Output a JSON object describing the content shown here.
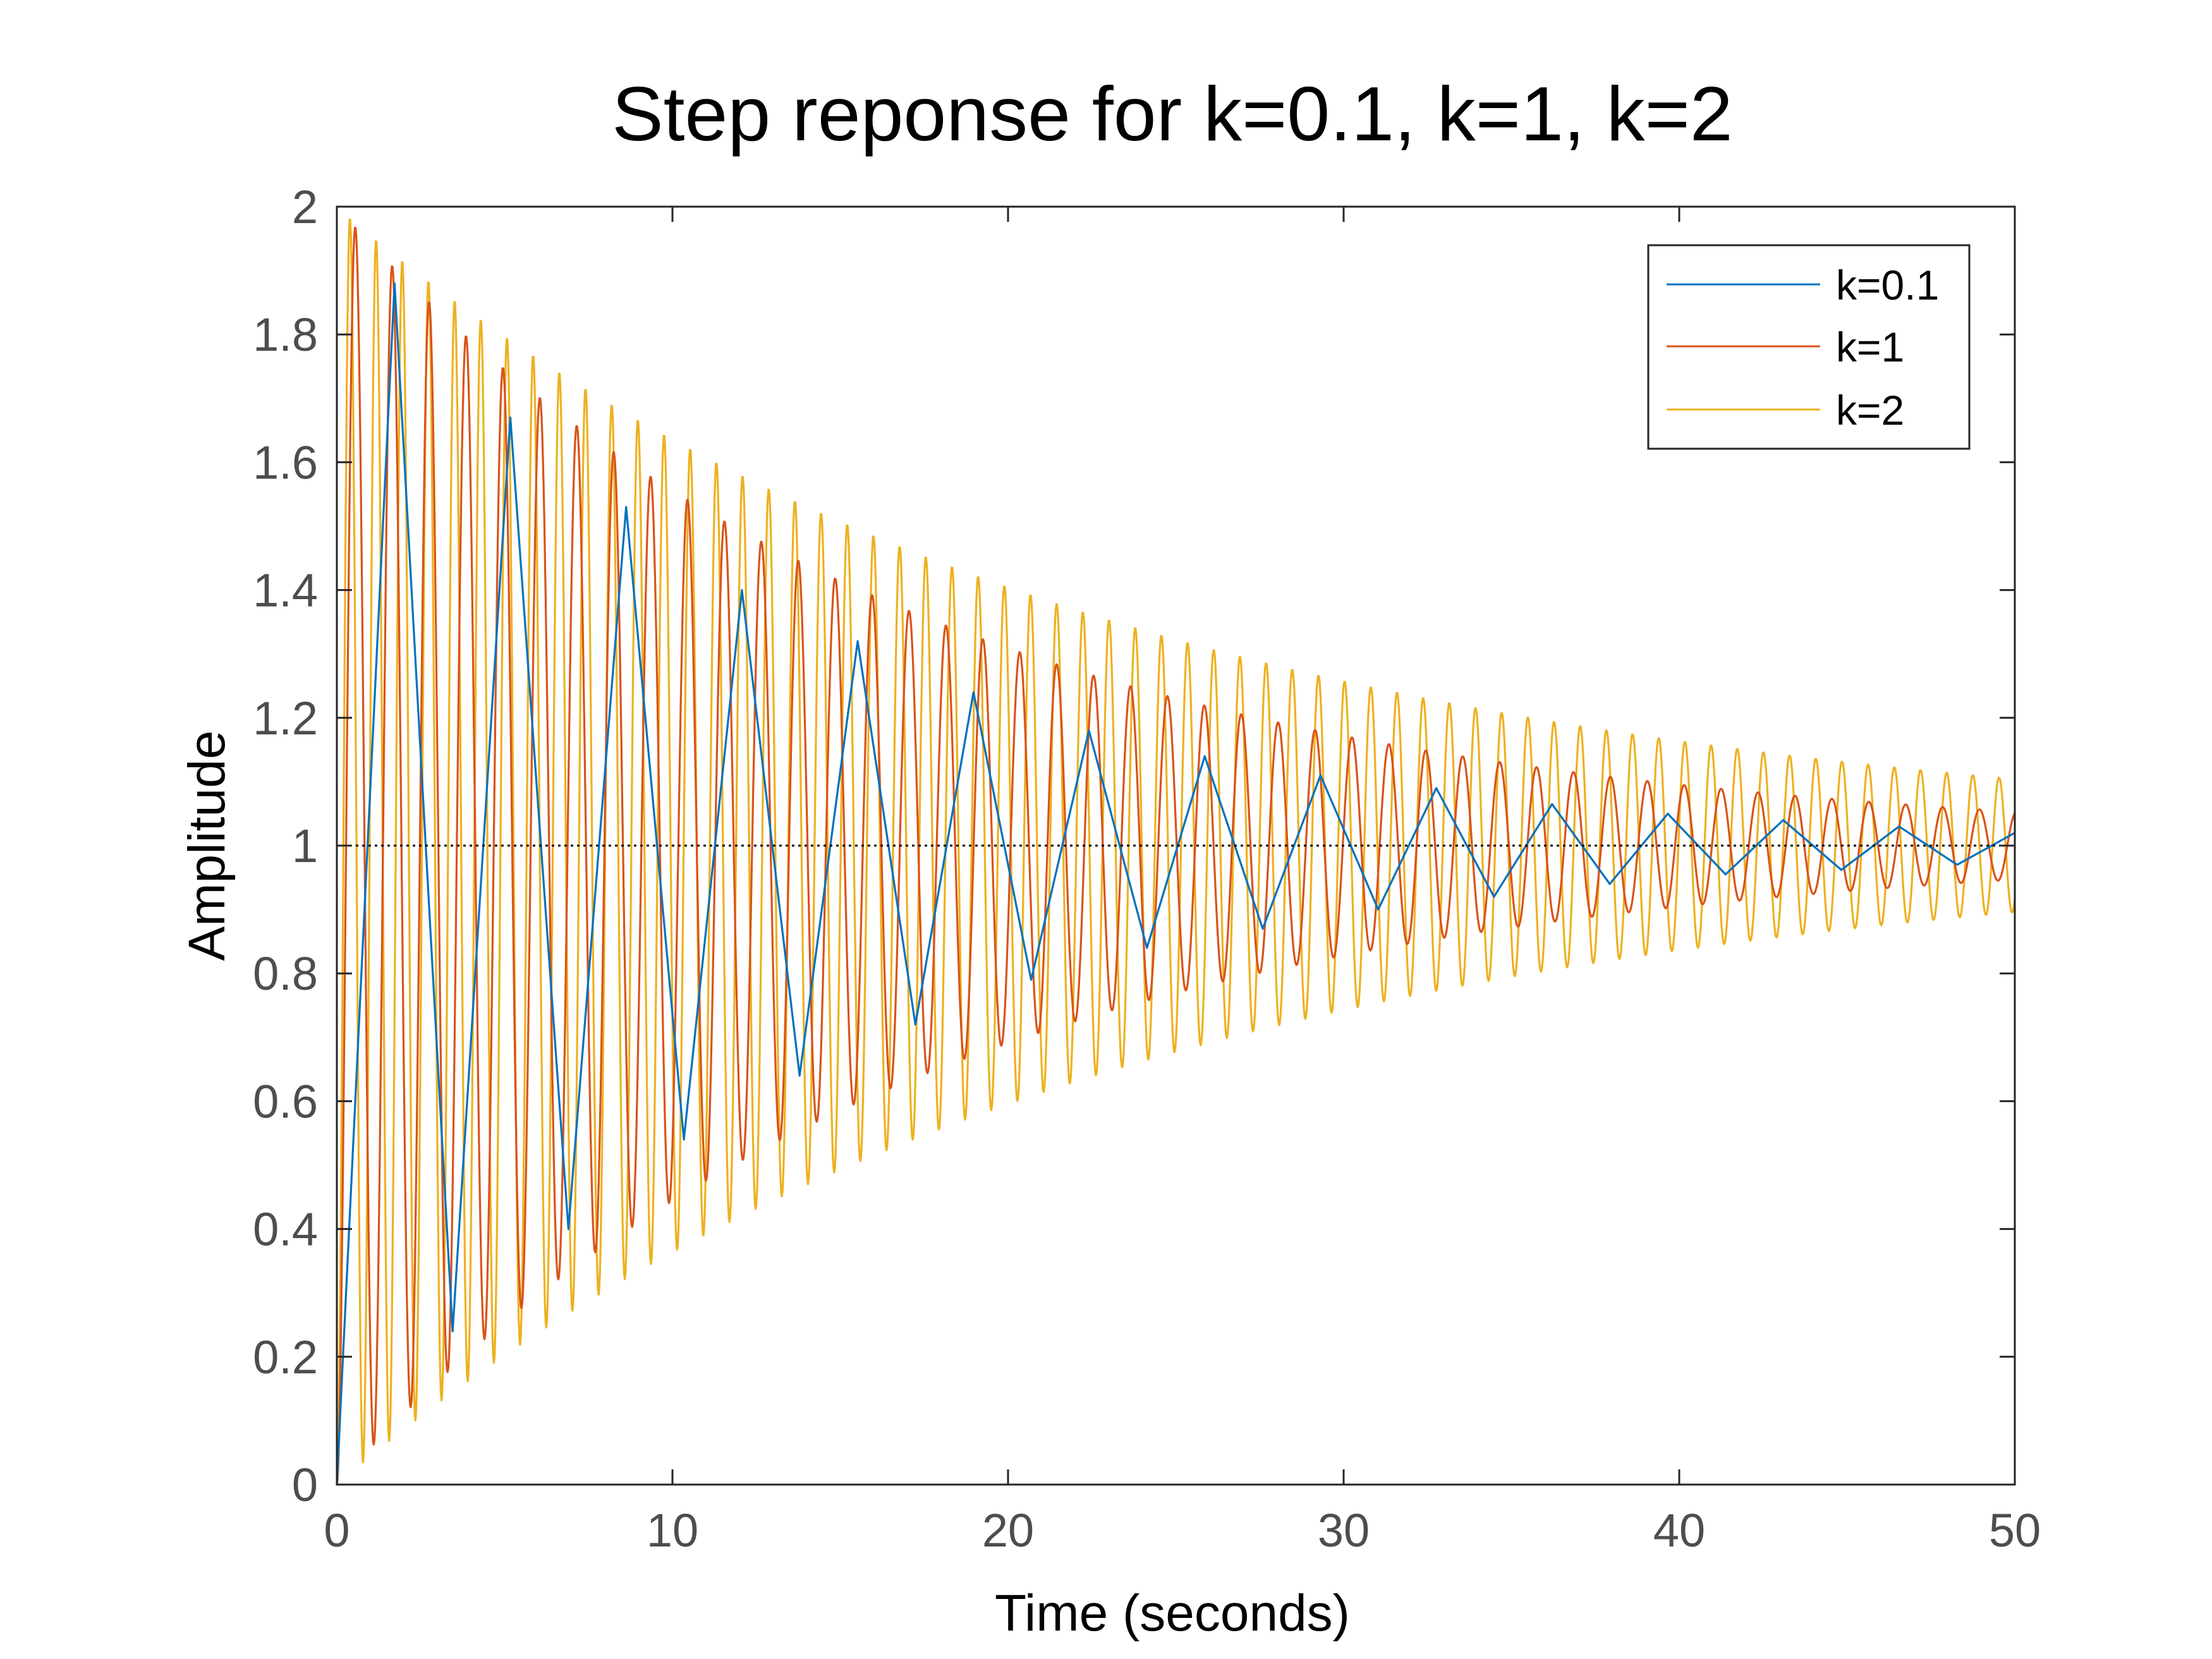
{
  "chart_data": {
    "type": "line",
    "title": "Step reponse for k=0.1, k=1, k=2",
    "xlabel": "Time (seconds)",
    "ylabel": "Amplitude",
    "xlim": [
      0,
      50
    ],
    "ylim": [
      0,
      2
    ],
    "xticks": [
      0,
      10,
      20,
      30,
      40,
      50
    ],
    "yticks": [
      0,
      0.2,
      0.4,
      0.6,
      0.8,
      1,
      1.2,
      1.4,
      1.6,
      1.8,
      2
    ],
    "xtick_labels": [
      "0",
      "10",
      "20",
      "30",
      "40",
      "50"
    ],
    "ytick_labels": [
      "0",
      "0.2",
      "0.4",
      "0.6",
      "0.8",
      "1",
      "1.2",
      "1.4",
      "1.6",
      "1.8",
      "2"
    ],
    "reference_line": {
      "y": 1,
      "style": "dotted",
      "color": "#000000"
    },
    "legend": {
      "position": "top-right",
      "entries": [
        "k=0.1",
        "k=1",
        "k=2"
      ]
    },
    "grid": false,
    "series": [
      {
        "name": "k=0.1",
        "color": "#0072BD",
        "x": [
          0,
          1.72,
          3.45,
          5.17,
          6.9,
          8.62,
          10.34,
          12.07,
          13.79,
          15.52,
          17.24,
          18.97,
          20.69,
          22.41,
          24.14,
          25.86,
          27.59,
          29.31,
          31.03,
          32.76,
          34.48,
          36.21,
          37.93,
          39.66,
          41.38,
          43.1,
          44.83,
          46.55,
          48.28,
          50
        ],
        "y": [
          0,
          1.88,
          0.24,
          1.67,
          0.4,
          1.53,
          0.54,
          1.4,
          0.64,
          1.32,
          0.72,
          1.24,
          0.79,
          1.18,
          0.84,
          1.14,
          0.87,
          1.11,
          0.9,
          1.09,
          0.92,
          1.065,
          0.94,
          1.05,
          0.955,
          1.04,
          0.962,
          1.03,
          0.97,
          1.02
        ]
      },
      {
        "name": "k=1",
        "color": "#D95319",
        "envelope": {
          "initial_peak": 1.94,
          "initial_trough": 0.06,
          "final_amplitude_at_50s": 0.05,
          "period_s": 1.1
        }
      },
      {
        "name": "k=2",
        "color": "#EDB120",
        "envelope": {
          "initial_peak": 1.96,
          "initial_trough": 0.04,
          "final_amplitude_at_50s": 0.1,
          "period_s": 0.78
        }
      }
    ]
  }
}
